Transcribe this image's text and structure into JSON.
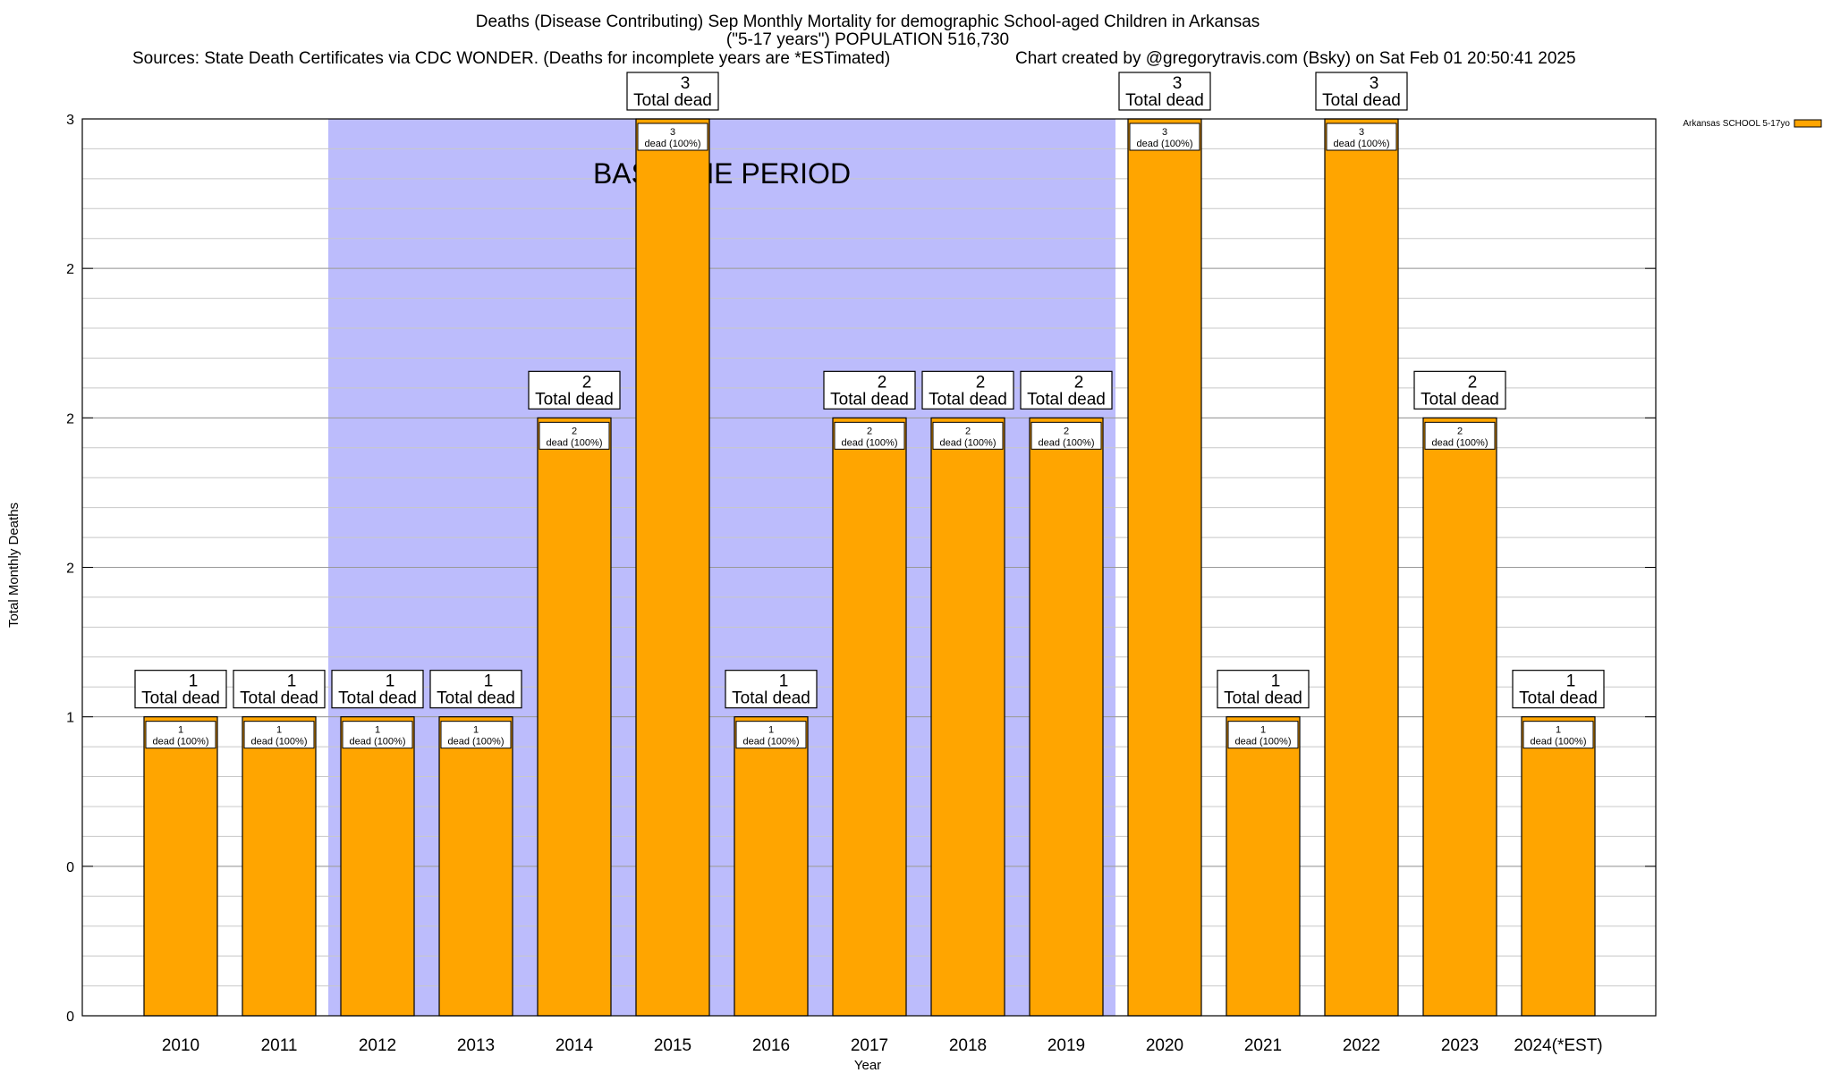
{
  "chart_data": {
    "type": "bar",
    "title_lines": [
      "Deaths (Disease Contributing) Sep Monthly Mortality for demographic School-aged Children in Arkansas",
      "(\"5-17 years\") POPULATION 516,730"
    ],
    "sources": "Sources: State Death Certificates via CDC WONDER. (Deaths for incomplete years are *ESTimated)",
    "credit": "Chart created by @gregorytravis.com (Bsky) on Sat Feb 01 20:50:41 2025",
    "xlabel": "Year",
    "ylabel": "Total Monthly Deaths",
    "categories": [
      "2010",
      "2011",
      "2012",
      "2013",
      "2014",
      "2015",
      "2016",
      "2017",
      "2018",
      "2019",
      "2020",
      "2021",
      "2022",
      "2023",
      "2024(*EST)"
    ],
    "series": [
      {
        "name": "Arkansas SCHOOL 5-17yo",
        "color": "#ffa500",
        "values": [
          1,
          1,
          1,
          1,
          2,
          3,
          1,
          2,
          2,
          2,
          3,
          1,
          3,
          2,
          1
        ]
      }
    ],
    "ylim": [
      0,
      3
    ],
    "ytick_values": [
      0,
      0.5,
      1,
      1.5,
      2,
      2.5,
      3
    ],
    "ytick_labels": [
      "0",
      "0",
      "1",
      "2",
      "2",
      "2",
      "3"
    ],
    "minor_grid_step": 0.1,
    "baseline_period": {
      "label": "BASELINE PERIOD",
      "from": "2012",
      "to": "2019",
      "color": "#bcbcfc"
    },
    "top_label_suffix": "Total dead",
    "inner_label_format": "dead (100%)",
    "legend_position": "top-right",
    "bar_color": "#ffa500",
    "grid": true
  }
}
